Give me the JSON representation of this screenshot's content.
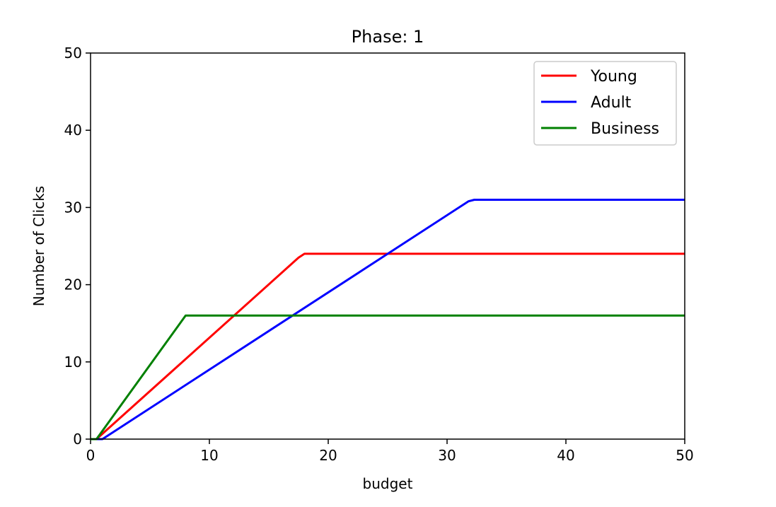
{
  "chart_data": {
    "type": "line",
    "title": "Phase: 1",
    "xlabel": "budget",
    "ylabel": "Number of Clicks",
    "xlim": [
      0,
      50
    ],
    "ylim": [
      0,
      50
    ],
    "xticks": [
      "0",
      "10",
      "20",
      "30",
      "40",
      "50"
    ],
    "yticks": [
      "0",
      "10",
      "20",
      "30",
      "40",
      "50"
    ],
    "grid": false,
    "legend": "top-right",
    "series": [
      {
        "name": "Young",
        "color": "#ff0000",
        "points": [
          [
            0,
            0
          ],
          [
            0.5,
            0
          ],
          [
            17.5,
            23.5
          ],
          [
            18,
            24
          ],
          [
            50,
            24
          ]
        ]
      },
      {
        "name": "Adult",
        "color": "#0000ff",
        "points": [
          [
            0,
            0
          ],
          [
            1,
            0
          ],
          [
            31.8,
            30.8
          ],
          [
            32.3,
            31
          ],
          [
            50,
            31
          ]
        ]
      },
      {
        "name": "Business",
        "color": "#008000",
        "points": [
          [
            0,
            0
          ],
          [
            0.5,
            0
          ],
          [
            8,
            16
          ],
          [
            50,
            16
          ]
        ]
      }
    ]
  }
}
